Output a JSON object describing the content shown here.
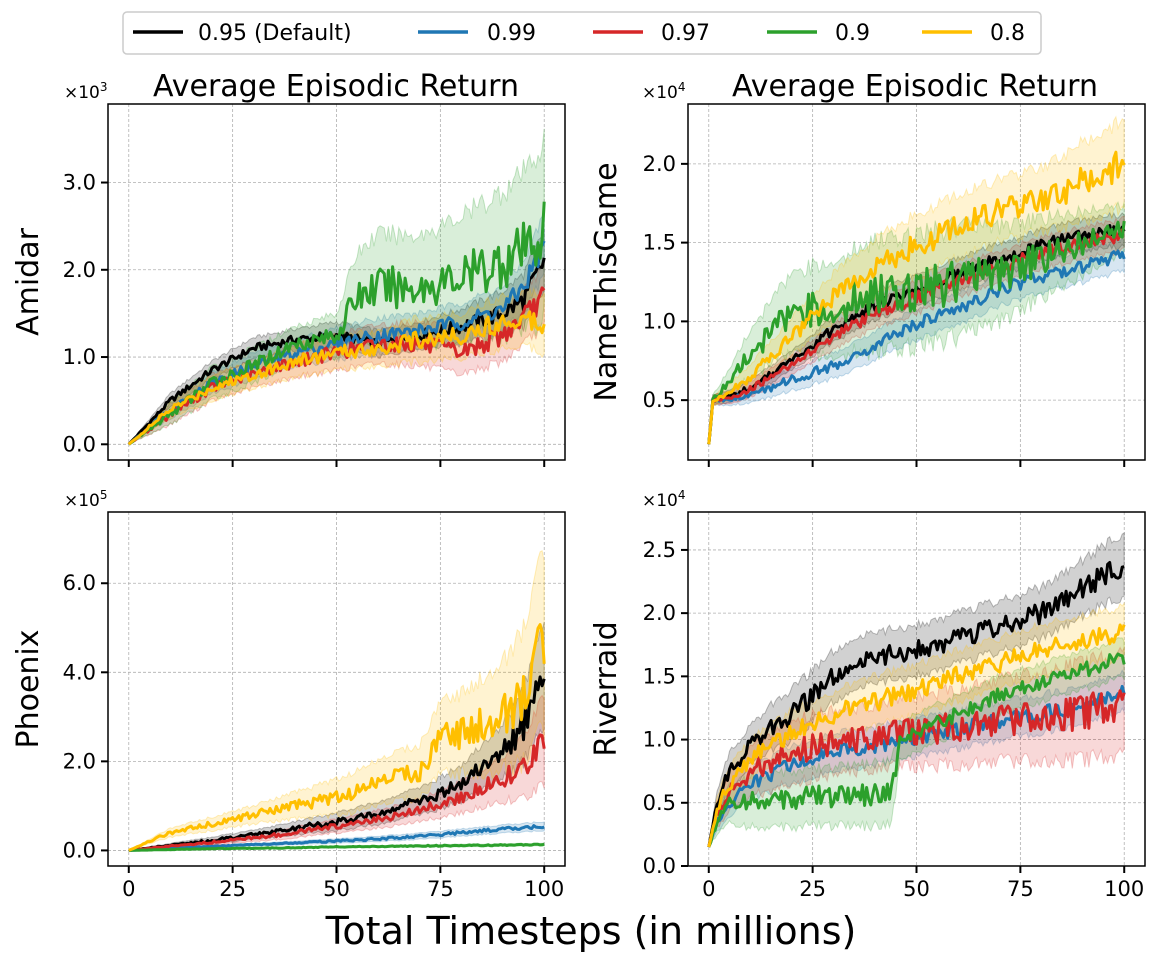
{
  "legend": {
    "entries": [
      {
        "label": "0.95 (Default)",
        "color": "#000000"
      },
      {
        "label": "0.99",
        "color": "#1f77b4"
      },
      {
        "label": "0.97",
        "color": "#d62728"
      },
      {
        "label": "0.9",
        "color": "#2ca02c"
      },
      {
        "label": "0.8",
        "color": "#ffbf00"
      }
    ]
  },
  "figure": {
    "xlabel": "Total Timesteps (in millions)"
  },
  "chart_data": [
    {
      "type": "line",
      "title": "Average Episodic Return",
      "ylabel": "Amidar",
      "multiplier": "×10",
      "multiplier_exp": "3",
      "scale": 1000,
      "xlim": [
        -5,
        105
      ],
      "ylim": [
        -180,
        3900
      ],
      "xticks": [
        0,
        25,
        50,
        75,
        100
      ],
      "xtick_labels_visible": false,
      "yticks": [
        0,
        1000,
        2000,
        3000
      ],
      "ytick_labels": [
        "0.0",
        "1.0",
        "2.0",
        "3.0"
      ],
      "series": [
        {
          "name": "0.95 (Default)",
          "color": "#000000",
          "x": [
            0,
            10,
            20,
            30,
            40,
            50,
            60,
            70,
            80,
            90,
            95,
            100
          ],
          "y": [
            0,
            500,
            850,
            1100,
            1200,
            1250,
            1150,
            1250,
            1350,
            1500,
            1650,
            2100
          ],
          "spread": [
            0,
            80,
            100,
            120,
            120,
            150,
            150,
            150,
            200,
            250,
            300,
            350
          ]
        },
        {
          "name": "0.99",
          "color": "#1f77b4",
          "x": [
            0,
            10,
            20,
            30,
            40,
            50,
            60,
            70,
            80,
            90,
            95,
            100
          ],
          "y": [
            0,
            400,
            700,
            900,
            1050,
            1150,
            1250,
            1300,
            1400,
            1550,
            1800,
            2300
          ],
          "spread": [
            0,
            100,
            120,
            150,
            150,
            180,
            200,
            200,
            220,
            250,
            300,
            350
          ]
        },
        {
          "name": "0.97",
          "color": "#d62728",
          "x": [
            0,
            10,
            20,
            30,
            40,
            50,
            60,
            70,
            80,
            90,
            95,
            100
          ],
          "y": [
            0,
            350,
            650,
            800,
            950,
            1050,
            1150,
            1150,
            1050,
            1250,
            1450,
            1700
          ],
          "spread": [
            0,
            120,
            150,
            150,
            180,
            200,
            220,
            250,
            250,
            300,
            300,
            350
          ]
        },
        {
          "name": "0.9",
          "color": "#2ca02c",
          "x": [
            0,
            10,
            20,
            30,
            40,
            50,
            55,
            60,
            70,
            80,
            90,
            95,
            100
          ],
          "y": [
            0,
            350,
            700,
            900,
            1150,
            1250,
            1700,
            1800,
            1800,
            1900,
            2100,
            2200,
            2450
          ],
          "spread": [
            0,
            120,
            180,
            200,
            200,
            250,
            500,
            600,
            600,
            700,
            800,
            900,
            1000
          ]
        },
        {
          "name": "0.8",
          "color": "#ffbf00",
          "x": [
            0,
            10,
            20,
            30,
            40,
            50,
            60,
            70,
            80,
            90,
            95,
            100
          ],
          "y": [
            0,
            400,
            650,
            800,
            950,
            1050,
            1100,
            1200,
            1250,
            1400,
            1450,
            1400
          ],
          "spread": [
            0,
            100,
            150,
            150,
            180,
            200,
            200,
            250,
            250,
            300,
            300,
            350
          ]
        }
      ]
    },
    {
      "type": "line",
      "title": "Average Episodic Return",
      "ylabel": "NameThisGame",
      "multiplier": "×10",
      "multiplier_exp": "4",
      "scale": 10000,
      "xlim": [
        -5,
        105
      ],
      "ylim": [
        1200,
        23800
      ],
      "xticks": [
        0,
        25,
        50,
        75,
        100
      ],
      "xtick_labels_visible": false,
      "yticks": [
        5000,
        10000,
        15000,
        20000
      ],
      "ytick_labels": [
        "0.5",
        "1.0",
        "1.5",
        "2.0"
      ],
      "series": [
        {
          "name": "0.95 (Default)",
          "color": "#000000",
          "x": [
            0,
            1,
            5,
            10,
            20,
            30,
            40,
            50,
            60,
            70,
            80,
            90,
            100
          ],
          "y": [
            2200,
            5000,
            5200,
            5800,
            7500,
            9500,
            11000,
            12000,
            13000,
            14000,
            14800,
            15500,
            15800
          ],
          "spread": [
            0,
            300,
            400,
            500,
            600,
            800,
            900,
            1000,
            1000,
            1000,
            1000,
            1000,
            1000
          ]
        },
        {
          "name": "0.99",
          "color": "#1f77b4",
          "x": [
            0,
            1,
            5,
            10,
            20,
            30,
            40,
            50,
            60,
            70,
            80,
            90,
            100
          ],
          "y": [
            2200,
            5000,
            5100,
            5300,
            6300,
            7200,
            8500,
            9800,
            10800,
            12000,
            12800,
            13500,
            14200
          ],
          "spread": [
            0,
            300,
            400,
            500,
            700,
            800,
            900,
            1000,
            1000,
            1000,
            1000,
            1000,
            1000
          ]
        },
        {
          "name": "0.97",
          "color": "#d62728",
          "x": [
            0,
            1,
            5,
            10,
            20,
            30,
            40,
            50,
            60,
            70,
            80,
            90,
            100
          ],
          "y": [
            2200,
            5000,
            5200,
            5700,
            7200,
            9000,
            10500,
            11500,
            12500,
            13500,
            14300,
            15000,
            15500
          ],
          "spread": [
            0,
            300,
            400,
            500,
            600,
            800,
            900,
            1000,
            1000,
            1000,
            1000,
            1000,
            1000
          ]
        },
        {
          "name": "0.9",
          "color": "#2ca02c",
          "x": [
            0,
            1,
            5,
            10,
            20,
            30,
            40,
            50,
            60,
            70,
            80,
            90,
            100
          ],
          "y": [
            2200,
            5000,
            6200,
            8000,
            10500,
            11000,
            11500,
            12000,
            12500,
            13000,
            14000,
            15000,
            15800
          ],
          "spread": [
            0,
            300,
            800,
            1500,
            2500,
            3000,
            3500,
            3500,
            3500,
            3000,
            2500,
            2000,
            1500
          ]
        },
        {
          "name": "0.8",
          "color": "#ffbf00",
          "x": [
            0,
            1,
            5,
            10,
            20,
            30,
            40,
            50,
            60,
            70,
            80,
            90,
            100
          ],
          "y": [
            2200,
            5000,
            5500,
            6500,
            9000,
            11500,
            13500,
            14800,
            16000,
            17000,
            17800,
            18800,
            20000
          ],
          "spread": [
            0,
            300,
            500,
            800,
            1200,
            1500,
            1800,
            2000,
            2000,
            2000,
            2000,
            2500,
            2800
          ]
        }
      ]
    },
    {
      "type": "line",
      "title": "",
      "ylabel": "Phoenix",
      "multiplier": "×10",
      "multiplier_exp": "5",
      "scale": 100000,
      "xlim": [
        -5,
        105
      ],
      "ylim": [
        -35000,
        760000
      ],
      "xticks": [
        0,
        25,
        50,
        75,
        100
      ],
      "xtick_labels_visible": true,
      "xtick_labels": [
        "0",
        "25",
        "50",
        "75",
        "100"
      ],
      "yticks": [
        0,
        200000,
        400000,
        600000
      ],
      "ytick_labels": [
        "0.0",
        "2.0",
        "4.0",
        "6.0"
      ],
      "series": [
        {
          "name": "0.95 (Default)",
          "color": "#000000",
          "x": [
            0,
            10,
            20,
            30,
            40,
            50,
            60,
            70,
            80,
            90,
            95,
            100
          ],
          "y": [
            0,
            12000,
            22000,
            35000,
            50000,
            65000,
            85000,
            110000,
            150000,
            220000,
            280000,
            400000
          ],
          "spread": [
            0,
            4000,
            8000,
            10000,
            15000,
            20000,
            25000,
            30000,
            40000,
            60000,
            80000,
            120000
          ]
        },
        {
          "name": "0.99",
          "color": "#1f77b4",
          "x": [
            0,
            10,
            20,
            30,
            40,
            50,
            60,
            70,
            80,
            90,
            100
          ],
          "y": [
            0,
            5000,
            9000,
            13000,
            17000,
            21000,
            26000,
            32000,
            40000,
            48000,
            55000
          ],
          "spread": [
            0,
            1000,
            2000,
            3000,
            4000,
            5000,
            6000,
            7000,
            8000,
            9000,
            10000
          ]
        },
        {
          "name": "0.97",
          "color": "#d62728",
          "x": [
            0,
            10,
            20,
            30,
            40,
            50,
            60,
            70,
            80,
            90,
            95,
            100
          ],
          "y": [
            0,
            10000,
            18000,
            28000,
            40000,
            55000,
            70000,
            90000,
            120000,
            160000,
            190000,
            250000
          ],
          "spread": [
            0,
            3000,
            6000,
            8000,
            12000,
            15000,
            20000,
            25000,
            35000,
            50000,
            70000,
            100000
          ]
        },
        {
          "name": "0.9",
          "color": "#2ca02c",
          "x": [
            0,
            10,
            20,
            30,
            40,
            50,
            60,
            70,
            80,
            90,
            100
          ],
          "y": [
            0,
            2000,
            4000,
            5000,
            6000,
            8000,
            9000,
            10000,
            11000,
            12000,
            13000
          ],
          "spread": [
            0,
            1000,
            1000,
            2000,
            2000,
            2000,
            2000,
            3000,
            3000,
            3000,
            3000
          ]
        },
        {
          "name": "0.8",
          "color": "#ffbf00",
          "x": [
            0,
            10,
            20,
            30,
            40,
            50,
            60,
            70,
            75,
            80,
            90,
            95,
            100
          ],
          "y": [
            0,
            40000,
            60000,
            80000,
            100000,
            120000,
            150000,
            180000,
            250000,
            260000,
            300000,
            350000,
            480000
          ],
          "spread": [
            0,
            10000,
            15000,
            20000,
            30000,
            40000,
            50000,
            60000,
            80000,
            90000,
            120000,
            150000,
            200000
          ]
        }
      ]
    },
    {
      "type": "line",
      "title": "",
      "ylabel": "Riverraid",
      "multiplier": "×10",
      "multiplier_exp": "4",
      "scale": 10000,
      "xlim": [
        -5,
        105
      ],
      "ylim": [
        0,
        28000
      ],
      "xticks": [
        0,
        25,
        50,
        75,
        100
      ],
      "xtick_labels_visible": true,
      "xtick_labels": [
        "0",
        "25",
        "50",
        "75",
        "100"
      ],
      "yticks": [
        0,
        5000,
        10000,
        15000,
        20000,
        25000
      ],
      "ytick_labels": [
        "0.0",
        "0.5",
        "1.0",
        "1.5",
        "2.0",
        "2.5"
      ],
      "series": [
        {
          "name": "0.95 (Default)",
          "color": "#000000",
          "x": [
            0,
            2,
            5,
            10,
            15,
            20,
            25,
            30,
            35,
            40,
            50,
            60,
            70,
            80,
            90,
            100
          ],
          "y": [
            1500,
            5000,
            7500,
            9500,
            11000,
            12000,
            13500,
            15000,
            16000,
            16500,
            17000,
            18000,
            19000,
            20000,
            22000,
            24000
          ],
          "spread": [
            0,
            1000,
            1500,
            1500,
            1800,
            2000,
            2000,
            2000,
            2000,
            2000,
            2000,
            2000,
            2000,
            2000,
            2200,
            2500
          ]
        },
        {
          "name": "0.99",
          "color": "#1f77b4",
          "x": [
            0,
            2,
            5,
            10,
            20,
            30,
            40,
            50,
            60,
            70,
            80,
            90,
            100
          ],
          "y": [
            1500,
            3500,
            5000,
            6500,
            8000,
            9000,
            9500,
            10200,
            10800,
            11500,
            12000,
            12800,
            13800
          ],
          "spread": [
            0,
            800,
            1000,
            1200,
            1500,
            1500,
            1500,
            1500,
            1500,
            1500,
            1500,
            1500,
            1500
          ]
        },
        {
          "name": "0.97",
          "color": "#d62728",
          "x": [
            0,
            2,
            5,
            10,
            20,
            30,
            40,
            50,
            60,
            70,
            80,
            90,
            100
          ],
          "y": [
            1500,
            4000,
            6000,
            7500,
            9000,
            9800,
            10200,
            10700,
            11000,
            11500,
            11800,
            12300,
            12800
          ],
          "spread": [
            0,
            1000,
            1500,
            2000,
            2500,
            2500,
            2500,
            2800,
            3000,
            3200,
            3500,
            3800,
            4000
          ]
        },
        {
          "name": "0.9",
          "color": "#2ca02c",
          "x": [
            0,
            2,
            5,
            10,
            20,
            30,
            40,
            44,
            46,
            50,
            60,
            70,
            80,
            90,
            100
          ],
          "y": [
            1500,
            3500,
            4800,
            5000,
            5300,
            5500,
            5700,
            5800,
            9800,
            10500,
            12000,
            13500,
            14500,
            15500,
            16500
          ],
          "spread": [
            0,
            1000,
            1500,
            2000,
            2200,
            2300,
            2500,
            2500,
            1500,
            1500,
            1500,
            1500,
            1500,
            1500,
            1500
          ]
        },
        {
          "name": "0.8",
          "color": "#ffbf00",
          "x": [
            0,
            2,
            5,
            10,
            20,
            30,
            40,
            50,
            60,
            70,
            80,
            90,
            100
          ],
          "y": [
            1500,
            4500,
            6500,
            8500,
            10500,
            12000,
            13000,
            14000,
            15000,
            16000,
            17000,
            17800,
            18500
          ],
          "spread": [
            0,
            1000,
            1500,
            1500,
            1800,
            1800,
            2000,
            2000,
            2000,
            2000,
            2000,
            2000,
            2000
          ]
        }
      ]
    }
  ]
}
